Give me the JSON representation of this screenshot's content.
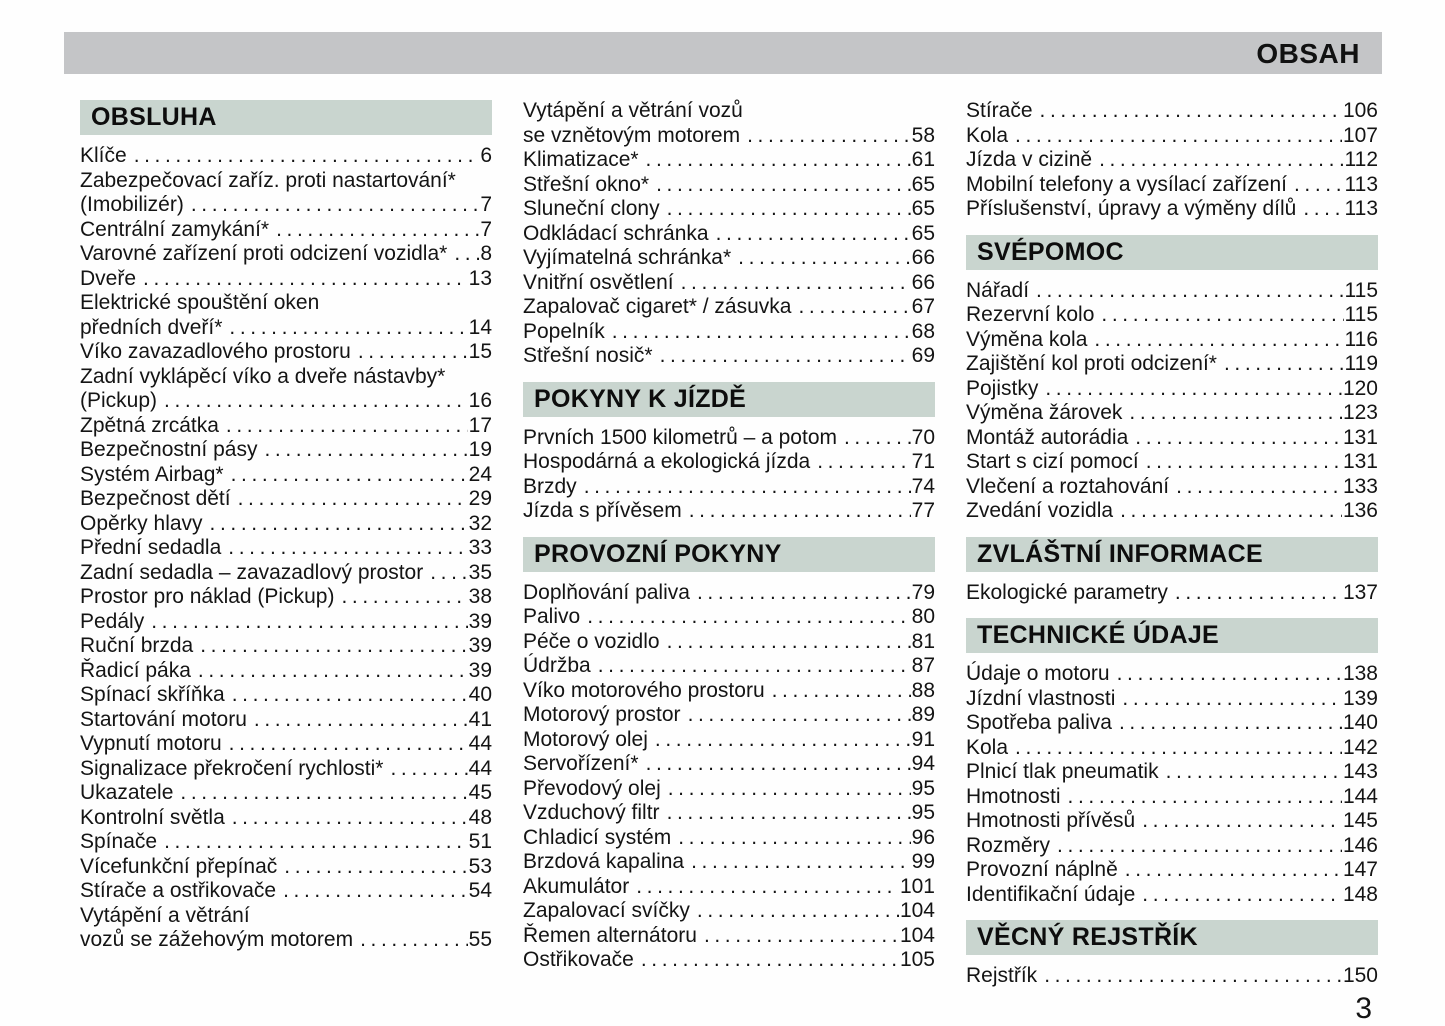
{
  "page": {
    "banner_title": "OBSAH",
    "folio": "3",
    "colors": {
      "banner_bg": "#c4c5c7",
      "section_bg": "#c9d5cf",
      "text": "#141414",
      "page_bg": "#fefefe"
    }
  },
  "columns": [
    {
      "blocks": [
        {
          "header": "OBSLUHA",
          "items": [
            {
              "lines": [
                "Klíče"
              ],
              "page": "6"
            },
            {
              "lines": [
                "Zabezpečovací zaříz. proti nastartování*",
                "(Imobilizér)"
              ],
              "page": "7"
            },
            {
              "lines": [
                "Centrální zamykání*"
              ],
              "page": "7"
            },
            {
              "lines": [
                "Varovné zařízení proti odcizení vozidla*"
              ],
              "page": "8"
            },
            {
              "lines": [
                "Dveře"
              ],
              "page": "13"
            },
            {
              "lines": [
                "Elektrické spouštění oken",
                "předních dveří*"
              ],
              "page": "14"
            },
            {
              "lines": [
                "Víko zavazadlového prostoru"
              ],
              "page": "15"
            },
            {
              "lines": [
                "Zadní vyklápěcí víko a dveře nástavby*",
                "(Pickup)"
              ],
              "page": "16"
            },
            {
              "lines": [
                "Zpětná zrcátka"
              ],
              "page": "17"
            },
            {
              "lines": [
                "Bezpečnostní pásy"
              ],
              "page": "19"
            },
            {
              "lines": [
                "Systém Airbag*"
              ],
              "page": "24"
            },
            {
              "lines": [
                "Bezpečnost dětí"
              ],
              "page": "29"
            },
            {
              "lines": [
                "Opěrky hlavy"
              ],
              "page": "32"
            },
            {
              "lines": [
                "Přední sedadla"
              ],
              "page": "33"
            },
            {
              "lines": [
                "Zadní sedadla – zavazadlový prostor"
              ],
              "page": "35"
            },
            {
              "lines": [
                "Prostor pro náklad (Pickup)"
              ],
              "page": "38"
            },
            {
              "lines": [
                "Pedály"
              ],
              "page": "39"
            },
            {
              "lines": [
                "Ruční brzda"
              ],
              "page": "39"
            },
            {
              "lines": [
                "Řadicí páka"
              ],
              "page": "39"
            },
            {
              "lines": [
                "Spínací skříňka"
              ],
              "page": "40"
            },
            {
              "lines": [
                "Startování motoru"
              ],
              "page": "41"
            },
            {
              "lines": [
                "Vypnutí motoru"
              ],
              "page": "44"
            },
            {
              "lines": [
                "Signalizace překročení rychlosti*"
              ],
              "page": "44"
            },
            {
              "lines": [
                "Ukazatele"
              ],
              "page": "45"
            },
            {
              "lines": [
                "Kontrolní světla"
              ],
              "page": "48"
            },
            {
              "lines": [
                "Spínače"
              ],
              "page": "51"
            },
            {
              "lines": [
                "Vícefunkční přepínač"
              ],
              "page": "53"
            },
            {
              "lines": [
                "Stírače a ostřikovače"
              ],
              "page": "54"
            },
            {
              "lines": [
                "Vytápění a větrání",
                "vozů se zážehovým motorem"
              ],
              "page": "55"
            }
          ]
        }
      ]
    },
    {
      "blocks": [
        {
          "header": null,
          "items": [
            {
              "lines": [
                "Vytápění a větrání vozů",
                "se vznětovým motorem"
              ],
              "page": "58"
            },
            {
              "lines": [
                "Klimatizace*"
              ],
              "page": "61"
            },
            {
              "lines": [
                "Střešní okno*"
              ],
              "page": "65"
            },
            {
              "lines": [
                "Sluneční clony"
              ],
              "page": "65"
            },
            {
              "lines": [
                "Odkládací schránka"
              ],
              "page": "65"
            },
            {
              "lines": [
                "Vyjímatelná schránka*"
              ],
              "page": "66"
            },
            {
              "lines": [
                "Vnitřní osvětlení"
              ],
              "page": "66"
            },
            {
              "lines": [
                "Zapalovač cigaret* / zásuvka"
              ],
              "page": "67"
            },
            {
              "lines": [
                "Popelník"
              ],
              "page": "68"
            },
            {
              "lines": [
                "Střešní nosič*"
              ],
              "page": "69"
            }
          ]
        },
        {
          "header": "POKYNY K JÍZDĚ",
          "items": [
            {
              "lines": [
                "Prvních 1500 kilometrů – a potom"
              ],
              "page": "70"
            },
            {
              "lines": [
                "Hospodárná a ekologická jízda"
              ],
              "page": "71"
            },
            {
              "lines": [
                "Brzdy"
              ],
              "page": "74"
            },
            {
              "lines": [
                "Jízda s přívěsem"
              ],
              "page": "77"
            }
          ]
        },
        {
          "header": "PROVOZNÍ POKYNY",
          "items": [
            {
              "lines": [
                "Doplňování paliva"
              ],
              "page": "79"
            },
            {
              "lines": [
                "Palivo"
              ],
              "page": "80"
            },
            {
              "lines": [
                "Péče o vozidlo"
              ],
              "page": "81"
            },
            {
              "lines": [
                "Údržba"
              ],
              "page": "87"
            },
            {
              "lines": [
                "Víko motorového prostoru"
              ],
              "page": "88"
            },
            {
              "lines": [
                "Motorový prostor"
              ],
              "page": "89"
            },
            {
              "lines": [
                "Motorový olej"
              ],
              "page": "91"
            },
            {
              "lines": [
                "Servořízení*"
              ],
              "page": "94"
            },
            {
              "lines": [
                "Převodový olej"
              ],
              "page": "95"
            },
            {
              "lines": [
                "Vzduchový filtr"
              ],
              "page": "95"
            },
            {
              "lines": [
                "Chladicí systém"
              ],
              "page": "96"
            },
            {
              "lines": [
                "Brzdová kapalina"
              ],
              "page": "99"
            },
            {
              "lines": [
                "Akumulátor"
              ],
              "page": "101"
            },
            {
              "lines": [
                "Zapalovací svíčky"
              ],
              "page": "104"
            },
            {
              "lines": [
                "Řemen alternátoru"
              ],
              "page": "104"
            },
            {
              "lines": [
                "Ostřikovače"
              ],
              "page": "105"
            }
          ]
        }
      ]
    },
    {
      "blocks": [
        {
          "header": null,
          "items": [
            {
              "lines": [
                "Stírače"
              ],
              "page": "106"
            },
            {
              "lines": [
                "Kola"
              ],
              "page": "107"
            },
            {
              "lines": [
                "Jízda v cizině"
              ],
              "page": "112"
            },
            {
              "lines": [
                "Mobilní telefony a vysílací zařízení"
              ],
              "page": "113"
            },
            {
              "lines": [
                "Příslušenství, úpravy a výměny dílů"
              ],
              "page": "113"
            }
          ]
        },
        {
          "header": "SVÉPOMOC",
          "items": [
            {
              "lines": [
                "Nářadí"
              ],
              "page": "115"
            },
            {
              "lines": [
                "Rezervní kolo"
              ],
              "page": "115"
            },
            {
              "lines": [
                "Výměna kola"
              ],
              "page": "116"
            },
            {
              "lines": [
                "Zajištění kol proti odcizení*"
              ],
              "page": "119"
            },
            {
              "lines": [
                "Pojistky"
              ],
              "page": "120"
            },
            {
              "lines": [
                "Výměna žárovek"
              ],
              "page": "123"
            },
            {
              "lines": [
                "Montáž autorádia"
              ],
              "page": "131"
            },
            {
              "lines": [
                "Start s cizí pomocí"
              ],
              "page": "131"
            },
            {
              "lines": [
                "Vlečení a roztahování"
              ],
              "page": "133"
            },
            {
              "lines": [
                "Zvedání vozidla"
              ],
              "page": "136"
            }
          ]
        },
        {
          "header": "ZVLÁŠTNÍ INFORMACE",
          "items": [
            {
              "lines": [
                "Ekologické parametry"
              ],
              "page": "137"
            }
          ]
        },
        {
          "header": "TECHNICKÉ ÚDAJE",
          "items": [
            {
              "lines": [
                "Údaje o motoru"
              ],
              "page": "138"
            },
            {
              "lines": [
                "Jízdní vlastnosti"
              ],
              "page": "139"
            },
            {
              "lines": [
                "Spotřeba paliva"
              ],
              "page": "140"
            },
            {
              "lines": [
                "Kola"
              ],
              "page": "142"
            },
            {
              "lines": [
                "Plnicí tlak pneumatik"
              ],
              "page": "143"
            },
            {
              "lines": [
                "Hmotnosti"
              ],
              "page": "144"
            },
            {
              "lines": [
                "Hmotnosti přívěsů"
              ],
              "page": "145"
            },
            {
              "lines": [
                "Rozměry"
              ],
              "page": "146"
            },
            {
              "lines": [
                "Provozní náplně"
              ],
              "page": "147"
            },
            {
              "lines": [
                "Identifikační údaje"
              ],
              "page": "148"
            }
          ]
        },
        {
          "header": "VĚCNÝ REJSTŘÍK",
          "items": [
            {
              "lines": [
                "Rejstřík"
              ],
              "page": "150"
            }
          ]
        }
      ]
    }
  ]
}
